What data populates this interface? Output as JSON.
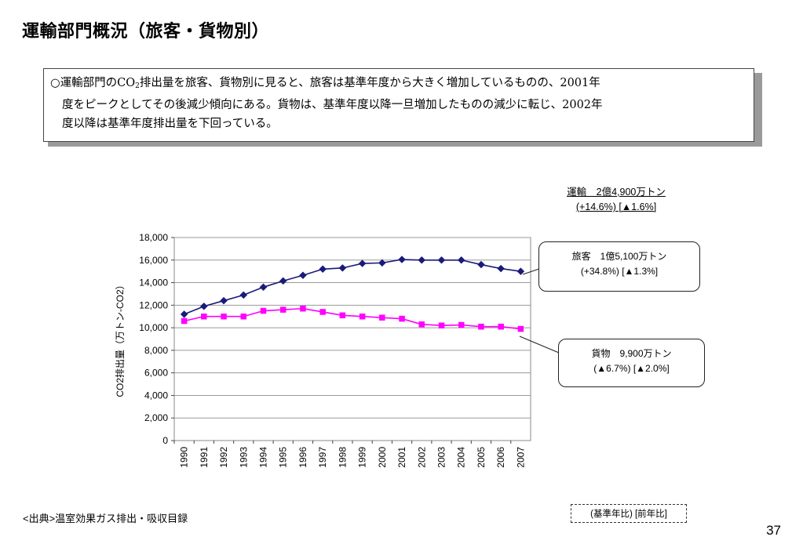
{
  "page": {
    "title": "運輸部門概況（旅客・貨物別）",
    "summary_lines": [
      "○運輸部門のCO",
      "2",
      "排出量を旅客、貨物別に見ると、旅客は基準年度から大きく増加しているものの、2001年",
      "度をピークとしてその後減少傾向にある。貨物は、基準年度以降一旦増加したものの減少に転じ、2002年",
      "度以降は基準年度排出量を下回っている。"
    ],
    "total_label_line1": "運輸　2億4,900万トン",
    "total_label_line2": "(+14.6%) [▲1.6%]",
    "passenger_callout_line1": "旅客　1億5,100万トン",
    "passenger_callout_line2": "(+34.8%) [▲1.3%]",
    "freight_callout_line1": "貨物　9,900万トン",
    "freight_callout_line2": "(▲6.7%) [▲2.0%]",
    "legend_note": "(基準年比) [前年比]",
    "source": "<出典>温室効果ガス排出・吸収目録",
    "page_number": "37"
  },
  "chart_data": {
    "type": "line",
    "ylabel": "CO2排出量（万トン-CO2）",
    "xlabel": "",
    "ylim": [
      0,
      18000
    ],
    "yticks": [
      0,
      2000,
      4000,
      6000,
      8000,
      10000,
      12000,
      14000,
      16000,
      18000
    ],
    "ytick_labels": [
      "0",
      "2,000",
      "4,000",
      "6,000",
      "8,000",
      "10,000",
      "12,000",
      "14,000",
      "16,000",
      "18,000"
    ],
    "grid": true,
    "x": [
      "1990",
      "1991",
      "1992",
      "1993",
      "1994",
      "1995",
      "1996",
      "1997",
      "1998",
      "1999",
      "2000",
      "2001",
      "2002",
      "2003",
      "2004",
      "2005",
      "2006",
      "2007"
    ],
    "series": [
      {
        "color": "#1a1a7a",
        "marker": "diamond",
        "values": [
          11200,
          11900,
          12400,
          12900,
          13600,
          14150,
          14650,
          15200,
          15300,
          15700,
          15750,
          16050,
          16000,
          16000,
          16000,
          15600,
          15250,
          15000
        ]
      },
      {
        "color": "#ff00ff",
        "marker": "square",
        "values": [
          10600,
          11000,
          11000,
          11000,
          11500,
          11600,
          11700,
          11400,
          11100,
          11000,
          10900,
          10800,
          10300,
          10200,
          10250,
          10100,
          10100,
          9900
        ]
      }
    ]
  }
}
